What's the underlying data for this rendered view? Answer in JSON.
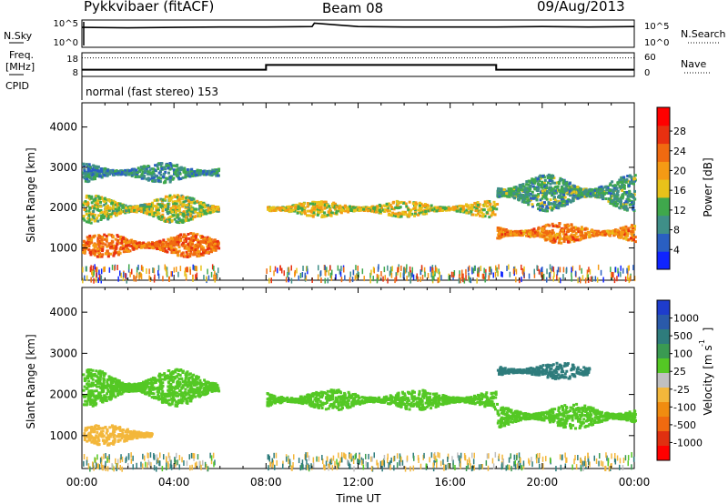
{
  "header": {
    "title": "Pykkvibaer (fitACF)",
    "beam": "Beam 08",
    "date": "09/Aug/2013"
  },
  "nsky_panel": {
    "left_label": "N.Sky",
    "right_label": "N.Search",
    "left_ticks": [
      "10^5",
      "10^0"
    ],
    "right_ticks": [
      "10^5",
      "10^0"
    ]
  },
  "freq_panel": {
    "left_label_line1": "Freq.",
    "left_label_line2": "[MHz]",
    "right_label": "Nave",
    "left_ticks": [
      "18",
      "8"
    ],
    "right_ticks": [
      "60",
      "0"
    ]
  },
  "cpid": {
    "label": "CPID",
    "text": "normal (fast stereo) 153"
  },
  "chart_data": [
    {
      "type": "line",
      "name": "N.Sky / N.Search",
      "x": [
        0,
        2,
        4,
        6,
        8,
        10,
        10.1,
        12,
        14,
        16,
        18,
        20,
        22,
        24
      ],
      "y_log": [
        4.2,
        4.1,
        4.2,
        4.3,
        4.3,
        4.4,
        5.2,
        4.4,
        4.3,
        4.3,
        4.3,
        4.4,
        4.3,
        4.4
      ]
    },
    {
      "type": "line",
      "name": "Frequency / Nave",
      "x_ticks": [
        "00:00",
        "04:00",
        "08:00",
        "12:00",
        "16:00",
        "20:00",
        "00:00"
      ],
      "freq_segments": [
        {
          "start": 0,
          "end": 8,
          "freq_mhz": 10.2
        },
        {
          "start": 8,
          "end": 18,
          "freq_mhz": 12.8
        },
        {
          "start": 18,
          "end": 24,
          "freq_mhz": 10.2
        }
      ],
      "nave_level": 52
    },
    {
      "type": "heatmap",
      "name": "Power",
      "ylabel": "Slant Range [km]",
      "y_ticks": [
        "1000",
        "2000",
        "3000",
        "4000"
      ],
      "xlim_hours": [
        0,
        24
      ],
      "ylim_km": [
        200,
        4600
      ],
      "colorbar": {
        "label": "Power [dB]",
        "ticks": [
          "4",
          "8",
          "12",
          "16",
          "20",
          "24",
          "28"
        ],
        "colors": [
          "#0f24ff",
          "#2a5fc2",
          "#3f8f88",
          "#3fa84c",
          "#e8c21a",
          "#f59a14",
          "#f06a10",
          "#e83010",
          "#ff0000"
        ]
      },
      "features": [
        {
          "t_start": 0.0,
          "t_end": 5.9,
          "r_center": 1100,
          "r_width": 600,
          "level": 24
        },
        {
          "t_start": 0.0,
          "t_end": 5.9,
          "r_center": 2000,
          "r_width": 700,
          "level": 14
        },
        {
          "t_start": 0.0,
          "t_end": 5.9,
          "r_center": 2900,
          "r_width": 500,
          "level": 8
        },
        {
          "t_start": 8.0,
          "t_end": 18.0,
          "r_center": 2000,
          "r_width": 400,
          "level": 16
        },
        {
          "t_start": 18.0,
          "t_end": 24.0,
          "r_center": 1400,
          "r_width": 500,
          "level": 22
        },
        {
          "t_start": 18.0,
          "t_end": 24.0,
          "r_center": 2400,
          "r_width": 900,
          "level": 10
        }
      ]
    },
    {
      "type": "heatmap",
      "name": "Velocity",
      "ylabel": "Slant Range [km]",
      "xlabel": "Time UT",
      "x_ticks": [
        "00:00",
        "04:00",
        "08:00",
        "12:00",
        "16:00",
        "20:00",
        "00:00"
      ],
      "y_ticks": [
        "1000",
        "2000",
        "3000",
        "4000"
      ],
      "colorbar": {
        "label": "Velocity [m s^-1]",
        "ticks": [
          "1000",
          "500",
          "100",
          "25",
          "-25",
          "-100",
          "-500",
          "-1000"
        ],
        "colors": [
          "#1e3ccc",
          "#2a5aaa",
          "#2e7c7c",
          "#3a9a52",
          "#54c824",
          "#c0c0c0",
          "#f3b73b",
          "#f08c10",
          "#f06a10",
          "#e03010",
          "#ff0000"
        ]
      },
      "features": [
        {
          "t_start": 0.0,
          "t_end": 3.0,
          "r_center": 1050,
          "r_width": 500,
          "level": -250
        },
        {
          "t_start": 0.0,
          "t_end": 5.9,
          "r_center": 2200,
          "r_width": 900,
          "level": 0
        },
        {
          "t_start": 8.0,
          "t_end": 18.0,
          "r_center": 1900,
          "r_width": 500,
          "level": 0
        },
        {
          "t_start": 18.0,
          "t_end": 24.0,
          "r_center": 1500,
          "r_width": 600,
          "level": 0
        },
        {
          "t_start": 18.0,
          "t_end": 22.0,
          "r_center": 2600,
          "r_width": 400,
          "level": 300
        }
      ]
    }
  ]
}
